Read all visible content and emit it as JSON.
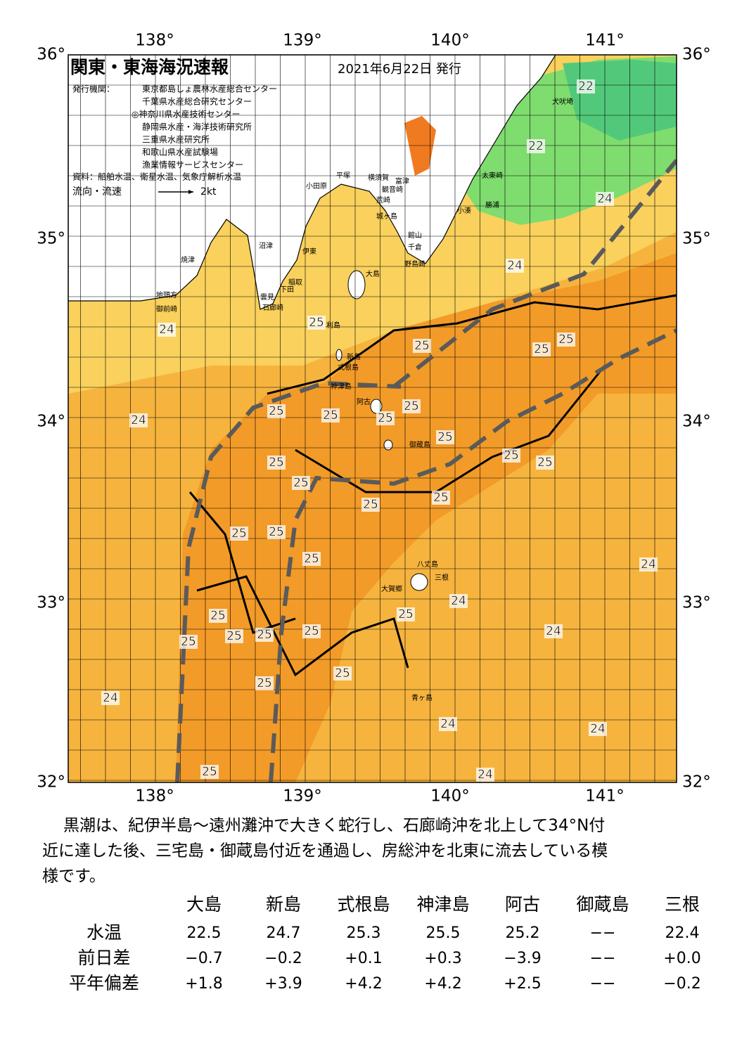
{
  "header": {
    "title": "関東・東海海況速報",
    "date": "2021年6月22日 発行",
    "agency_label": "発行機関：",
    "agencies": [
      "東京都島しょ農林水産総合センター",
      "千葉県水産総合研究センター",
      "◎神奈川県水産技術センター",
      "静岡県水産・海洋技術研究所",
      "三重県水産研究所",
      "和歌山県水産試験場",
      "漁業情報サービスセンター"
    ],
    "sources": "資料：船舶水温、衛星水温、気象庁解析水温",
    "legend_label": "流向・流速",
    "legend_speed": "2kt"
  },
  "map": {
    "lon_labels": [
      "138°",
      "139°",
      "140°",
      "141°"
    ],
    "lat_labels": [
      "36°",
      "35°",
      "34°",
      "33°",
      "32°"
    ],
    "place_names": [
      "犬吠埼",
      "太東崎",
      "勝浦",
      "小湊",
      "富津",
      "館山",
      "千倉",
      "野島崎",
      "横須賀",
      "観音崎",
      "平塚",
      "小田原",
      "荒崎",
      "城ヶ島",
      "沼津",
      "伊東",
      "大島",
      "稲取",
      "下田",
      "焼津",
      "地頭方",
      "御前崎",
      "雲見",
      "石廊崎",
      "利島",
      "新島",
      "式根島",
      "神津島",
      "阿古",
      "御蔵島",
      "八丈島",
      "三根",
      "大賀郷",
      "青ヶ島"
    ],
    "contour_labels": [
      "22",
      "22",
      "24",
      "24",
      "25",
      "25",
      "25",
      "25",
      "24",
      "25",
      "25",
      "25",
      "25",
      "24",
      "25",
      "25",
      "25",
      "25",
      "25",
      "25",
      "25",
      "25",
      "25",
      "25",
      "24",
      "24",
      "25",
      "25",
      "25",
      "25",
      "25",
      "25",
      "24",
      "25",
      "25",
      "24",
      "24",
      "24",
      "25",
      "24"
    ]
  },
  "description": [
    "黒潮は、紀伊半島～遠州灘沖で大きく蛇行し、石廊崎沖を北上して34°N付",
    "近に達した後、三宅島・御蔵島付近を通過し、房総沖を北東に流去している模",
    "様です。"
  ],
  "table": {
    "columns": [
      "大島",
      "新島",
      "式根島",
      "神津島",
      "阿古",
      "御蔵島",
      "三根"
    ],
    "rows": [
      [
        "水温",
        "22.5",
        "24.7",
        "25.3",
        "25.5",
        "25.2",
        "−−",
        "22.4"
      ],
      [
        "前日差",
        "−0.7",
        "−0.2",
        "+0.1",
        "+0.3",
        "−3.9",
        "−−",
        "+0.0"
      ],
      [
        "平年偏差",
        "+1.8",
        "+3.9",
        "+4.2",
        "+4.2",
        "+2.5",
        "−−",
        "−0.2"
      ]
    ]
  }
}
